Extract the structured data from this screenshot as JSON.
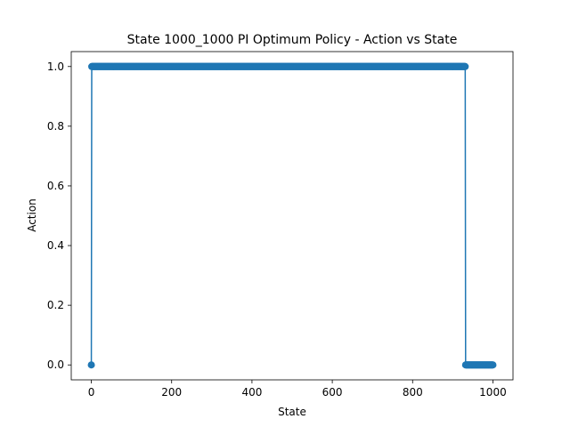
{
  "chart_data": {
    "type": "line",
    "title": "State 1000_1000 PI Optimum Policy - Action vs State",
    "xlabel": "State",
    "ylabel": "Action",
    "xlim": [
      -50,
      1050
    ],
    "ylim": [
      -0.05,
      1.05
    ],
    "xticks": [
      0,
      200,
      400,
      600,
      800,
      1000
    ],
    "yticks": [
      0.0,
      0.2,
      0.4,
      0.6,
      0.8,
      1.0
    ],
    "xtick_labels": [
      "0",
      "200",
      "400",
      "600",
      "800",
      "1000"
    ],
    "ytick_labels": [
      "0.0",
      "0.2",
      "0.4",
      "0.6",
      "0.8",
      "1.0"
    ],
    "grid": false,
    "marker": "circle",
    "series": [
      {
        "color": "#1f77b4",
        "segments": [
          {
            "x_start": 0,
            "x_end": 0,
            "y": 0
          },
          {
            "x_start": 1,
            "x_end": 931,
            "y": 1
          },
          {
            "x_start": 932,
            "x_end": 1000,
            "y": 0
          }
        ]
      }
    ]
  }
}
